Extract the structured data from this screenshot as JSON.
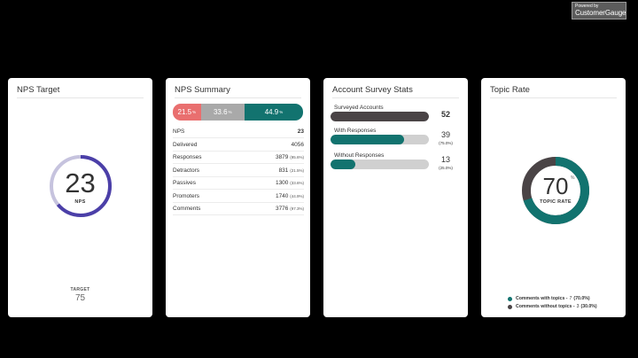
{
  "branding": {
    "line1": "Powered by",
    "line2": "CustomerGauge"
  },
  "colors": {
    "teal": "#12736f",
    "dark": "#4a4446",
    "purple": "#4b3fa8",
    "lavender": "#c6c3de",
    "red": "#e96f6f",
    "gray": "#a9a9a9",
    "track": "#d0d0d0"
  },
  "nps_target": {
    "title": "NPS Target",
    "value": "23",
    "label": "NPS",
    "target_label": "TARGET",
    "target_value": "75",
    "progress_fraction": 0.64
  },
  "nps_summary": {
    "title": "NPS Summary",
    "segments": [
      {
        "name": "detractors",
        "value": "21.5",
        "unit": "%",
        "fraction": 0.215,
        "color": "#e96f6f"
      },
      {
        "name": "passives",
        "value": "33.6",
        "unit": "%",
        "fraction": 0.336,
        "color": "#a9a9a9"
      },
      {
        "name": "promoters",
        "value": "44.9",
        "unit": "%",
        "fraction": 0.449,
        "color": "#12736f"
      }
    ],
    "rows": [
      {
        "label": "NPS",
        "value": "23",
        "pct": "",
        "bold": true
      },
      {
        "label": "Delivered",
        "value": "4056",
        "pct": ""
      },
      {
        "label": "Responses",
        "value": "3879",
        "pct": "(95.6%)"
      },
      {
        "label": "Detractors",
        "value": "831",
        "pct": "(21.5%)"
      },
      {
        "label": "Passives",
        "value": "1300",
        "pct": "(33.6%)"
      },
      {
        "label": "Promoters",
        "value": "1740",
        "pct": "(44.9%)"
      },
      {
        "label": "Comments",
        "value": "3776",
        "pct": "(97.3%)"
      }
    ]
  },
  "account_stats": {
    "title": "Account Survey Stats",
    "items": [
      {
        "label": "Surveyed Accounts",
        "value": "52",
        "pct": "",
        "fraction": 1.0,
        "color": "#4a4446",
        "bold": true
      },
      {
        "label": "With Responses",
        "value": "39",
        "pct": "(75.0%)",
        "fraction": 0.75,
        "color": "#12736f"
      },
      {
        "label": "Without Responses",
        "value": "13",
        "pct": "(25.0%)",
        "fraction": 0.25,
        "color": "#12736f"
      }
    ]
  },
  "topic_rate": {
    "title": "Topic Rate",
    "value": "70",
    "unit": "%",
    "label": "TOPIC RATE",
    "fraction": 0.7,
    "legend": [
      {
        "label": "Comments with topics -",
        "count": "7",
        "pct": "(70.0%)",
        "color": "#12736f"
      },
      {
        "label": "Comments without topics -",
        "count": "3",
        "pct": "(30.0%)",
        "color": "#4a4446"
      }
    ]
  }
}
